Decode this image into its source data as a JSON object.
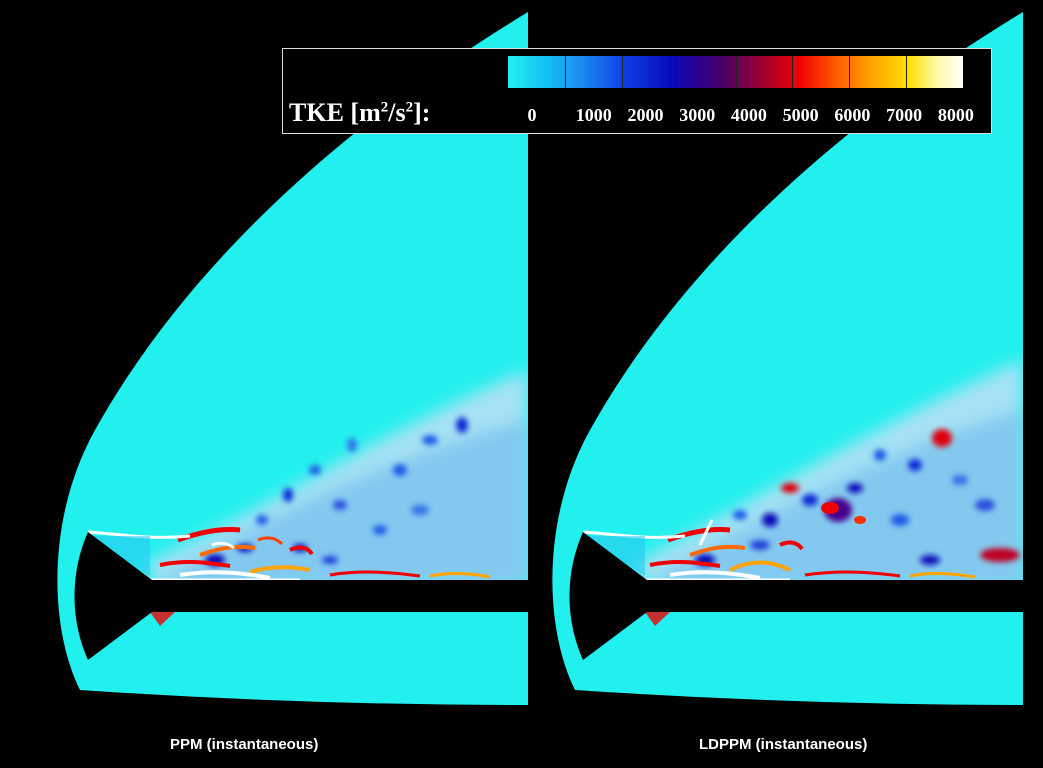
{
  "legend": {
    "label_prefix": "TKE [m",
    "sup1": "2",
    "label_mid": "/s",
    "sup2": "2",
    "label_suffix": "]:",
    "tick_labels": [
      "0",
      "1000",
      "2000",
      "3000",
      "4000",
      "5000",
      "6000",
      "7000",
      "8000"
    ]
  },
  "panels": [
    {
      "caption": "PPM (instantaneous)"
    },
    {
      "caption": "LDPPM (instantaneous)"
    }
  ],
  "colors": {
    "background": "#000000",
    "freestream": "#22f0ee",
    "low": "#1c8cf0",
    "mid": "#0a0ab8",
    "high": "#f00000",
    "peak": "#ffffff"
  }
}
